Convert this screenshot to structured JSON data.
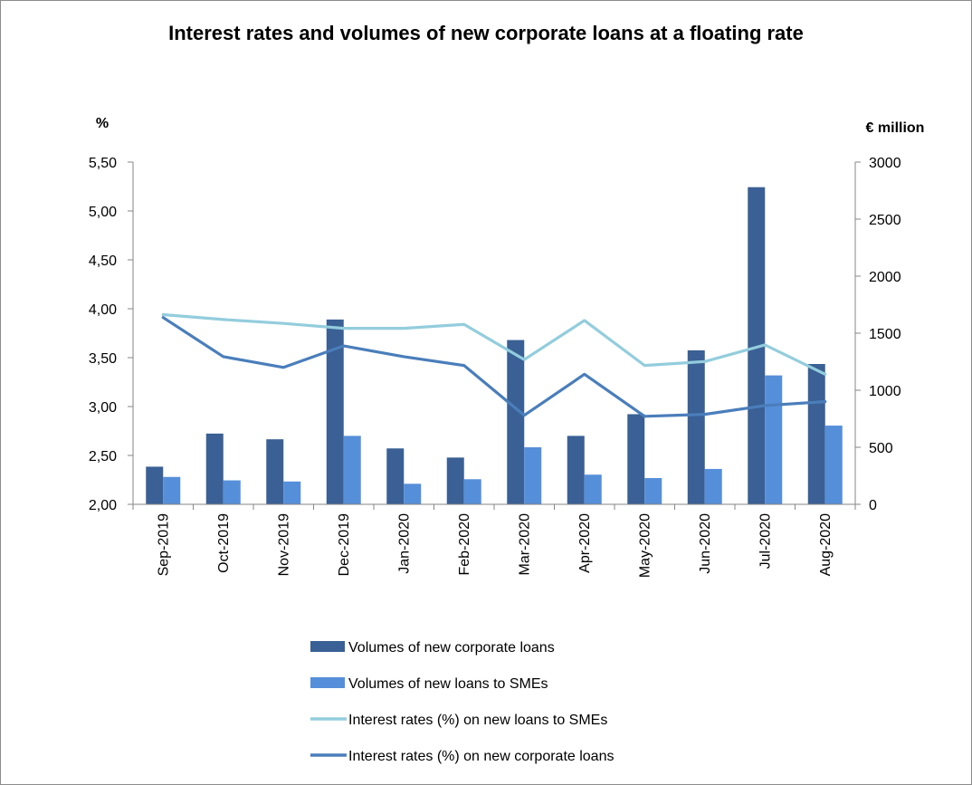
{
  "chart_data": {
    "type": "bar",
    "title": "Interest rates and volumes of new corporate loans at a floating rate",
    "categories": [
      "Sep-2019",
      "Oct-2019",
      "Nov-2019",
      "Dec-2019",
      "Jan-2020",
      "Feb-2020",
      "Mar-2020",
      "Apr-2020",
      "May-2020",
      "Jun-2020",
      "Jul-2020",
      "Aug-2020"
    ],
    "left_axis": {
      "label": "%",
      "min": 2.0,
      "max": 5.5,
      "ticks": [
        "2,00",
        "2,50",
        "3,00",
        "3,50",
        "4,00",
        "4,50",
        "5,00",
        "5,50"
      ]
    },
    "right_axis": {
      "label": "€ million",
      "min": 0,
      "max": 3000,
      "ticks": [
        "0",
        "500",
        "1000",
        "1500",
        "2000",
        "2500",
        "3000"
      ]
    },
    "series": [
      {
        "name": "Volumes of new corporate loans",
        "kind": "bar",
        "axis": "right",
        "color": "#3a6095",
        "values": [
          330,
          620,
          570,
          1620,
          490,
          410,
          1440,
          600,
          790,
          1350,
          2780,
          1230
        ]
      },
      {
        "name": "Volumes of new loans to SMEs",
        "kind": "bar",
        "axis": "right",
        "color": "#568fd9",
        "values": [
          240,
          210,
          200,
          600,
          180,
          220,
          500,
          260,
          230,
          310,
          1130,
          690
        ]
      },
      {
        "name": "Interest rates (%) on new loans to SMEs",
        "kind": "line",
        "axis": "left",
        "color": "#93cddd",
        "values": [
          3.94,
          3.89,
          3.85,
          3.8,
          3.8,
          3.84,
          3.48,
          3.88,
          3.42,
          3.46,
          3.63,
          3.33
        ]
      },
      {
        "name": "Interest rates (%) on new corporate loans",
        "kind": "line",
        "axis": "left",
        "color": "#4a7ebb",
        "values": [
          3.91,
          3.51,
          3.4,
          3.62,
          3.51,
          3.42,
          2.91,
          3.33,
          2.9,
          2.92,
          3.01,
          3.05
        ]
      }
    ],
    "grid": false,
    "legend_position": "bottom"
  }
}
